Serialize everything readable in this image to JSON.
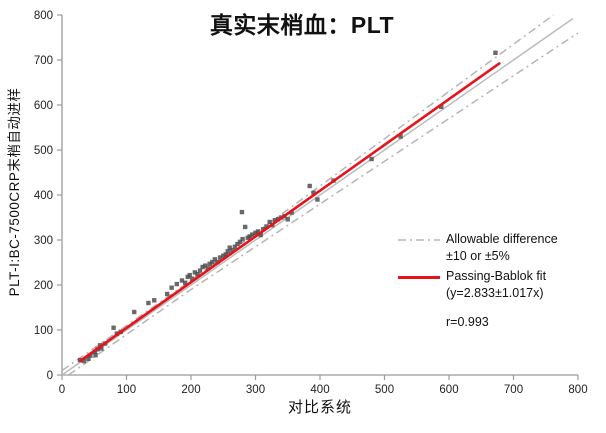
{
  "title": "真实末梢血：PLT",
  "axes": {
    "x_label": "对比系统",
    "y_label": "PLT-I:BC-7500CRP末梢自动进样"
  },
  "legend": {
    "allowable_line1": "Allowable difference",
    "allowable_line2": "±10 or ±5%",
    "fit_line1": "Passing-Bablok fit",
    "fit_line2": "(y=2.833±1.017x)",
    "r_value": "r=0.993"
  },
  "colors": {
    "fit_line": "#e8121a",
    "allowable_line": "#b5b5b5",
    "identity_line": "#bcbcbc",
    "marker": "#4f4f4f",
    "axis": "#9b9b9b",
    "tick_label": "#222222"
  },
  "chart_data": {
    "type": "scatter",
    "title": "真实末梢血：PLT",
    "xlabel": "对比系统",
    "ylabel": "PLT-I:BC-7500CRP末梢自动进样",
    "xlim": [
      0,
      800
    ],
    "ylim": [
      0,
      800
    ],
    "x_ticks": [
      0,
      100,
      200,
      300,
      400,
      500,
      600,
      700,
      800
    ],
    "y_ticks": [
      0,
      100,
      200,
      300,
      400,
      500,
      600,
      700,
      800
    ],
    "grid": false,
    "legend_position": "right-middle",
    "marker": {
      "shape": "square",
      "size": 4.4,
      "color": "#4f4f4f",
      "opacity": 0.85
    },
    "points": [
      [
        28,
        33
      ],
      [
        34,
        31
      ],
      [
        41,
        36
      ],
      [
        44,
        43
      ],
      [
        51,
        51
      ],
      [
        52,
        44
      ],
      [
        55,
        57
      ],
      [
        59,
        66
      ],
      [
        61,
        59
      ],
      [
        67,
        70
      ],
      [
        80,
        105
      ],
      [
        85,
        92
      ],
      [
        91,
        96
      ],
      [
        112,
        140
      ],
      [
        134,
        160
      ],
      [
        143,
        166
      ],
      [
        163,
        180
      ],
      [
        170,
        194
      ],
      [
        178,
        202
      ],
      [
        186,
        210
      ],
      [
        191,
        205
      ],
      [
        195,
        218
      ],
      [
        198,
        222
      ],
      [
        202,
        214
      ],
      [
        206,
        228
      ],
      [
        210,
        224
      ],
      [
        214,
        232
      ],
      [
        218,
        240
      ],
      [
        222,
        243
      ],
      [
        226,
        237
      ],
      [
        229,
        247
      ],
      [
        233,
        251
      ],
      [
        237,
        257
      ],
      [
        241,
        251
      ],
      [
        245,
        261
      ],
      [
        250,
        265
      ],
      [
        254,
        268
      ],
      [
        257,
        275
      ],
      [
        260,
        283
      ],
      [
        264,
        277
      ],
      [
        268,
        285
      ],
      [
        272,
        291
      ],
      [
        276,
        296
      ],
      [
        279,
        362
      ],
      [
        280,
        302
      ],
      [
        284,
        329
      ],
      [
        288,
        305
      ],
      [
        291,
        308
      ],
      [
        295,
        312
      ],
      [
        300,
        316
      ],
      [
        304,
        319
      ],
      [
        308,
        311
      ],
      [
        312,
        324
      ],
      [
        317,
        330
      ],
      [
        322,
        340
      ],
      [
        326,
        333
      ],
      [
        330,
        344
      ],
      [
        335,
        346
      ],
      [
        340,
        350
      ],
      [
        345,
        353
      ],
      [
        350,
        346
      ],
      [
        356,
        361
      ],
      [
        384,
        420
      ],
      [
        390,
        405
      ],
      [
        396,
        390
      ],
      [
        421,
        432
      ],
      [
        480,
        480
      ],
      [
        525,
        530
      ],
      [
        588,
        596
      ],
      [
        672,
        716
      ]
    ],
    "fit": {
      "name": "Passing-Bablok fit",
      "equation_display": "(y=2.833±1.017x)",
      "intercept": 2.833,
      "slope": 1.017,
      "x_start": 28,
      "x_end": 678,
      "r": 0.993
    },
    "allowable_difference": {
      "name": "Allowable difference",
      "rule_display": "±10 or ±5%",
      "absolute": 10,
      "percent": 5,
      "style": "dash-dot"
    },
    "identity_line": {
      "slope": 1,
      "intercept": 0,
      "x_start": 0,
      "x_end": 792
    }
  }
}
